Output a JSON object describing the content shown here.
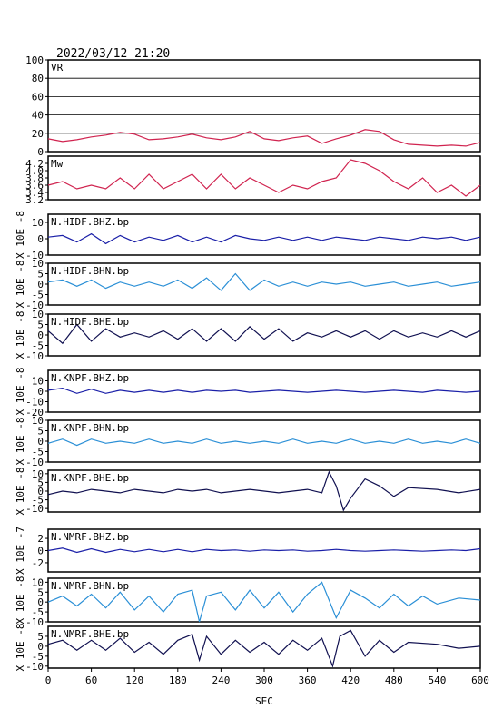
{
  "header": {
    "title": "2022/03/12 21:20"
  },
  "colors": {
    "vr": "#d0234f",
    "mw": "#d0234f",
    "bhz": "#1a1fa8",
    "bhn": "#2a8fd6",
    "bhe": "#101050",
    "frame": "#000000"
  },
  "x_axis": {
    "label": "SEC",
    "min": 0,
    "max": 600,
    "ticks": [
      0,
      60,
      120,
      180,
      240,
      300,
      360,
      420,
      480,
      540,
      600
    ]
  },
  "chart_data": [
    {
      "type": "line",
      "name": "VR",
      "title": "VR",
      "ylabel": "",
      "ylim": [
        0,
        100
      ],
      "yticks": [
        0,
        20,
        40,
        60,
        80,
        100
      ],
      "grid": true,
      "x": [
        0,
        20,
        40,
        60,
        80,
        100,
        120,
        140,
        160,
        180,
        200,
        220,
        240,
        260,
        280,
        300,
        320,
        340,
        360,
        380,
        400,
        420,
        440,
        460,
        480,
        500,
        520,
        540,
        560,
        580,
        600
      ],
      "values": [
        14,
        11,
        13,
        16,
        18,
        21,
        19,
        13,
        14,
        16,
        19,
        15,
        13,
        16,
        22,
        14,
        12,
        15,
        17,
        9,
        14,
        18,
        24,
        22,
        13,
        8,
        7,
        6,
        7,
        6,
        10
      ]
    },
    {
      "type": "line",
      "name": "Mw",
      "title": "Mw",
      "ylabel": "",
      "ylim": [
        3.2,
        4.4
      ],
      "yticks": [
        "4.2",
        "4.0",
        "3.8",
        "3.6",
        "3.4",
        "3.2"
      ],
      "grid": false,
      "x": [
        0,
        20,
        40,
        60,
        80,
        100,
        120,
        140,
        160,
        180,
        200,
        220,
        240,
        260,
        280,
        300,
        320,
        340,
        360,
        380,
        400,
        420,
        440,
        460,
        480,
        500,
        520,
        540,
        560,
        580,
        600
      ],
      "values": [
        3.6,
        3.7,
        3.5,
        3.6,
        3.5,
        3.8,
        3.5,
        3.9,
        3.5,
        3.7,
        3.9,
        3.5,
        3.9,
        3.5,
        3.8,
        3.6,
        3.4,
        3.6,
        3.5,
        3.7,
        3.8,
        4.3,
        4.2,
        4.0,
        3.7,
        3.5,
        3.8,
        3.4,
        3.6,
        3.3,
        3.6
      ]
    },
    {
      "type": "line",
      "name": "N.HIDF.BHZ.bp",
      "title": "N.HIDF.BHZ.bp",
      "ylabel": "X 10E -8",
      "ylim": [
        -10,
        15
      ],
      "yticks": [
        "10",
        "0",
        "-10"
      ],
      "tickvals": [
        10,
        0,
        -10
      ],
      "x": [
        0,
        20,
        40,
        60,
        80,
        100,
        120,
        140,
        160,
        180,
        200,
        220,
        240,
        260,
        280,
        300,
        320,
        340,
        360,
        380,
        400,
        420,
        440,
        460,
        480,
        500,
        520,
        540,
        560,
        580,
        600
      ],
      "values": [
        1,
        2,
        -2,
        3,
        -3,
        2,
        -2,
        1,
        -1,
        2,
        -2,
        1,
        -2,
        2,
        0,
        -1,
        1,
        -1,
        1,
        -1,
        1,
        0,
        -1,
        1,
        0,
        -1,
        1,
        0,
        1,
        -1,
        1
      ]
    },
    {
      "type": "line",
      "name": "N.HIDF.BHN.bp",
      "title": "N.HIDF.BHN.bp",
      "ylabel": "X 10E -8",
      "ylim": [
        -10,
        10
      ],
      "yticks": [
        "10",
        "5",
        "0",
        "-5",
        "-10"
      ],
      "tickvals": [
        10,
        5,
        0,
        -5,
        -10
      ],
      "x": [
        0,
        20,
        40,
        60,
        80,
        100,
        120,
        140,
        160,
        180,
        200,
        220,
        240,
        260,
        280,
        300,
        320,
        340,
        360,
        380,
        400,
        420,
        440,
        460,
        480,
        500,
        520,
        540,
        560,
        580,
        600
      ],
      "values": [
        1,
        2,
        -1,
        2,
        -2,
        1,
        -1,
        1,
        -1,
        2,
        -2,
        3,
        -3,
        5,
        -3,
        2,
        -1,
        1,
        -1,
        1,
        0,
        1,
        -1,
        0,
        1,
        -1,
        0,
        1,
        -1,
        0,
        1
      ]
    },
    {
      "type": "line",
      "name": "N.HIDF.BHE.bp",
      "title": "N.HIDF.BHE.bp",
      "ylabel": "X 10E -8",
      "ylim": [
        -10,
        10
      ],
      "yticks": [
        "10",
        "5",
        "0",
        "-5",
        "-10"
      ],
      "tickvals": [
        10,
        5,
        0,
        -5,
        -10
      ],
      "x": [
        0,
        20,
        40,
        60,
        80,
        100,
        120,
        140,
        160,
        180,
        200,
        220,
        240,
        260,
        280,
        300,
        320,
        340,
        360,
        380,
        400,
        420,
        440,
        460,
        480,
        500,
        520,
        540,
        560,
        580,
        600
      ],
      "values": [
        2,
        -4,
        5,
        -3,
        3,
        -1,
        1,
        -1,
        2,
        -2,
        3,
        -3,
        3,
        -3,
        4,
        -2,
        3,
        -3,
        1,
        -1,
        2,
        -1,
        2,
        -2,
        2,
        -1,
        1,
        -1,
        2,
        -1,
        2
      ]
    },
    {
      "type": "line",
      "name": "N.KNPF.BHZ.bp",
      "title": "N.KNPF.BHZ.bp",
      "ylabel": "X 10E -8",
      "ylim": [
        -20,
        20
      ],
      "yticks": [
        "10",
        "0",
        "-10",
        "-20"
      ],
      "tickvals": [
        10,
        0,
        -10,
        -20
      ],
      "x": [
        0,
        20,
        40,
        60,
        80,
        100,
        120,
        140,
        160,
        180,
        200,
        220,
        240,
        260,
        280,
        300,
        320,
        340,
        360,
        380,
        400,
        420,
        440,
        460,
        480,
        500,
        520,
        540,
        560,
        580,
        600
      ],
      "values": [
        1,
        3,
        -2,
        2,
        -2,
        1,
        -1,
        1,
        -1,
        1,
        -1,
        1,
        0,
        1,
        -1,
        0,
        1,
        0,
        -1,
        0,
        1,
        0,
        -1,
        0,
        1,
        0,
        -1,
        1,
        0,
        -1,
        0
      ]
    },
    {
      "type": "line",
      "name": "N.KNPF.BHN.bp",
      "title": "N.KNPF.BHN.bp",
      "ylabel": "X 10E -8",
      "ylim": [
        -10,
        10
      ],
      "yticks": [
        "10",
        "5",
        "0",
        "-5",
        "-10"
      ],
      "tickvals": [
        10,
        5,
        0,
        -5,
        -10
      ],
      "x": [
        0,
        20,
        40,
        60,
        80,
        100,
        120,
        140,
        160,
        180,
        200,
        220,
        240,
        260,
        280,
        300,
        320,
        340,
        360,
        380,
        400,
        420,
        440,
        460,
        480,
        500,
        520,
        540,
        560,
        580,
        600
      ],
      "values": [
        -1,
        1,
        -2,
        1,
        -1,
        0,
        -1,
        1,
        -1,
        0,
        -1,
        1,
        -1,
        0,
        -1,
        0,
        -1,
        1,
        -1,
        0,
        -1,
        1,
        -1,
        0,
        -1,
        1,
        -1,
        0,
        -1,
        1,
        -1
      ]
    },
    {
      "type": "line",
      "name": "N.KNPF.BHE.bp",
      "title": "N.KNPF.BHE.bp",
      "ylabel": "X 10E -8",
      "ylim": [
        -12,
        12
      ],
      "yticks": [
        "10",
        "5",
        "0",
        "-5",
        "-10"
      ],
      "tickvals": [
        10,
        5,
        0,
        -5,
        -10
      ],
      "x": [
        0,
        20,
        40,
        60,
        80,
        100,
        120,
        140,
        160,
        180,
        200,
        220,
        240,
        260,
        280,
        300,
        320,
        340,
        360,
        380,
        390,
        400,
        410,
        420,
        440,
        460,
        480,
        500,
        540,
        570,
        600
      ],
      "values": [
        -2,
        0,
        -1,
        1,
        0,
        -1,
        1,
        0,
        -1,
        1,
        0,
        1,
        -1,
        0,
        1,
        0,
        -1,
        0,
        1,
        -1,
        11,
        3,
        -11,
        -4,
        7,
        3,
        -3,
        2,
        1,
        -1,
        1
      ]
    },
    {
      "type": "line",
      "name": "N.NMRF.BHZ.bp",
      "title": "N.NMRF.BHZ.bp",
      "ylabel": "X 10E -7",
      "ylim": [
        -3.5,
        3.5
      ],
      "yticks": [
        "2",
        "0",
        "-2"
      ],
      "tickvals": [
        2,
        0,
        -2
      ],
      "x": [
        0,
        20,
        40,
        60,
        80,
        100,
        120,
        140,
        160,
        180,
        200,
        220,
        240,
        260,
        280,
        300,
        320,
        340,
        360,
        380,
        400,
        420,
        440,
        460,
        480,
        500,
        520,
        540,
        560,
        580,
        600
      ],
      "values": [
        0,
        0.4,
        -0.3,
        0.3,
        -0.3,
        0.2,
        -0.2,
        0.2,
        -0.2,
        0.2,
        -0.2,
        0.2,
        0,
        0.1,
        -0.1,
        0.1,
        0,
        0.1,
        -0.1,
        0,
        0.2,
        0,
        -0.1,
        0,
        0.1,
        0,
        -0.1,
        0,
        0.1,
        0,
        0.3
      ]
    },
    {
      "type": "line",
      "name": "N.NMRF.BHN.bp",
      "title": "N.NMRF.BHN.bp",
      "ylabel": "X 10E -8",
      "ylim": [
        -10,
        12
      ],
      "yticks": [
        "10",
        "5",
        "0",
        "-5",
        "-10"
      ],
      "tickvals": [
        10,
        5,
        0,
        -5,
        -10
      ],
      "x": [
        0,
        20,
        40,
        60,
        80,
        100,
        120,
        140,
        160,
        180,
        200,
        210,
        220,
        240,
        260,
        280,
        300,
        320,
        340,
        360,
        380,
        400,
        420,
        440,
        460,
        480,
        500,
        520,
        540,
        570,
        600
      ],
      "values": [
        0,
        3,
        -2,
        4,
        -3,
        5,
        -4,
        3,
        -5,
        4,
        6,
        -10,
        3,
        5,
        -4,
        6,
        -3,
        5,
        -5,
        4,
        10,
        -8,
        6,
        2,
        -3,
        4,
        -2,
        3,
        -1,
        2,
        1
      ]
    },
    {
      "type": "line",
      "name": "N.NMRF.BHE.bp",
      "title": "N.NMRF.BHE.bp",
      "ylabel": "X 10E -8",
      "ylim": [
        -11,
        10
      ],
      "yticks": [
        "5",
        "0",
        "-5",
        "-10"
      ],
      "tickvals": [
        5,
        0,
        -5,
        -10
      ],
      "x": [
        0,
        20,
        40,
        60,
        80,
        100,
        120,
        140,
        160,
        180,
        200,
        210,
        220,
        240,
        260,
        280,
        300,
        320,
        340,
        360,
        380,
        395,
        405,
        420,
        440,
        460,
        480,
        500,
        540,
        570,
        600
      ],
      "values": [
        1,
        3,
        -2,
        3,
        -2,
        4,
        -3,
        2,
        -4,
        3,
        6,
        -7,
        5,
        -4,
        3,
        -3,
        2,
        -4,
        3,
        -2,
        4,
        -10,
        5,
        8,
        -5,
        3,
        -3,
        2,
        1,
        -1,
        0
      ]
    }
  ]
}
